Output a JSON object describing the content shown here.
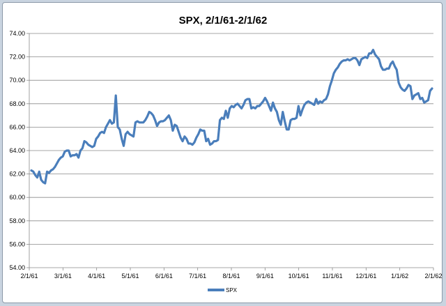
{
  "chart_data": {
    "type": "line",
    "title": "SPX, 2/1/61-2/1/62",
    "xlabel": "",
    "ylabel": "",
    "ylim": [
      54.0,
      74.0
    ],
    "y_ticks": [
      "74.00",
      "72.00",
      "70.00",
      "68.00",
      "66.00",
      "64.00",
      "62.00",
      "60.00",
      "58.00",
      "56.00",
      "54.00"
    ],
    "x_tick_labels": [
      "2/1/61",
      "3/1/61",
      "4/1/61",
      "5/1/61",
      "6/1/61",
      "7/1/61",
      "8/1/61",
      "9/1/61",
      "10/1/61",
      "11/1/61",
      "12/1/61",
      "1/1/62",
      "2/1/62"
    ],
    "grid": true,
    "legend_position": "bottom",
    "line_color": "#4a7ebb",
    "series": [
      {
        "name": "SPX",
        "values": [
          62.3,
          62.2,
          61.9,
          61.7,
          62.2,
          61.5,
          61.3,
          61.2,
          62.2,
          62.1,
          62.3,
          62.4,
          62.6,
          62.9,
          63.2,
          63.4,
          63.5,
          63.9,
          64.0,
          64.0,
          63.5,
          63.6,
          63.6,
          63.7,
          63.4,
          64.0,
          64.2,
          64.8,
          64.7,
          64.5,
          64.4,
          64.3,
          64.4,
          65.0,
          65.2,
          65.5,
          65.6,
          65.5,
          66.0,
          66.3,
          66.6,
          66.3,
          66.4,
          68.7,
          66.0,
          65.8,
          65.0,
          64.4,
          65.4,
          65.6,
          65.4,
          65.3,
          65.2,
          66.4,
          66.5,
          66.4,
          66.4,
          66.4,
          66.6,
          66.9,
          67.3,
          67.2,
          67.0,
          66.6,
          66.1,
          66.4,
          66.5,
          66.5,
          66.6,
          66.8,
          67.0,
          66.6,
          65.7,
          66.2,
          66.1,
          65.6,
          65.1,
          64.8,
          65.2,
          65.0,
          64.6,
          64.6,
          64.5,
          64.7,
          65.1,
          65.4,
          65.8,
          65.7,
          65.7,
          64.8,
          65.0,
          64.5,
          64.6,
          64.8,
          64.8,
          64.9,
          66.6,
          66.8,
          66.7,
          67.4,
          66.8,
          67.6,
          67.8,
          67.7,
          67.9,
          68.0,
          67.8,
          67.6,
          67.9,
          68.3,
          68.4,
          68.4,
          67.6,
          67.7,
          67.6,
          67.8,
          67.8,
          68.0,
          68.2,
          68.5,
          68.2,
          67.8,
          67.4,
          68.1,
          67.6,
          67.3,
          66.6,
          66.2,
          67.3,
          66.5,
          65.8,
          65.8,
          66.6,
          66.7,
          66.7,
          66.8,
          67.8,
          67.0,
          67.5,
          67.9,
          68.1,
          68.2,
          68.1,
          68.0,
          67.9,
          68.4,
          68.0,
          68.2,
          68.1,
          68.3,
          68.4,
          68.8,
          69.5,
          70.0,
          70.6,
          70.9,
          71.1,
          71.4,
          71.6,
          71.7,
          71.7,
          71.8,
          71.7,
          71.8,
          71.9,
          71.9,
          71.7,
          71.3,
          71.8,
          71.9,
          72.0,
          71.9,
          72.3,
          72.3,
          72.6,
          72.2,
          72.0,
          71.8,
          71.2,
          70.9,
          70.9,
          71.0,
          71.0,
          71.4,
          71.6,
          71.2,
          70.9,
          69.8,
          69.4,
          69.2,
          69.1,
          69.3,
          69.6,
          69.5,
          68.4,
          68.7,
          68.8,
          68.9,
          68.4,
          68.5,
          68.1,
          68.2,
          68.3,
          69.1,
          69.3
        ]
      }
    ]
  }
}
